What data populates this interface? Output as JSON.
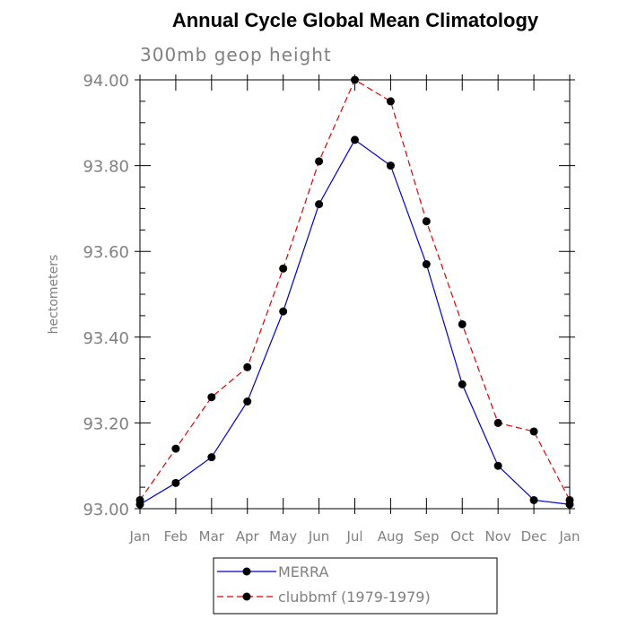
{
  "chart_data": {
    "type": "line",
    "title": "Annual Cycle Global Mean Climatology",
    "subtitle": "300mb geop height",
    "xlabel": "",
    "ylabel": "hectometers",
    "categories": [
      "Jan",
      "Feb",
      "Mar",
      "Apr",
      "May",
      "Jun",
      "Jul",
      "Aug",
      "Sep",
      "Oct",
      "Nov",
      "Dec",
      "Jan"
    ],
    "yticks": [
      "93.00",
      "93.20",
      "93.40",
      "93.60",
      "93.80",
      "94.00"
    ],
    "ylim": [
      93.0,
      94.0
    ],
    "grid": false,
    "legend_position": "bottom",
    "series": [
      {
        "name": "MERRA",
        "color": "#0000cc",
        "line_style": "solid",
        "marker": "filled-circle",
        "values": [
          93.01,
          93.06,
          93.12,
          93.25,
          93.46,
          93.71,
          93.86,
          93.8,
          93.57,
          93.29,
          93.1,
          93.02,
          93.01
        ]
      },
      {
        "name": "clubbmf (1979-1979)",
        "color": "#dd0000",
        "line_style": "dashed",
        "marker": "filled-circle",
        "values": [
          93.02,
          93.14,
          93.26,
          93.33,
          93.56,
          93.81,
          94.0,
          93.95,
          93.67,
          93.43,
          93.2,
          93.18,
          93.02
        ]
      }
    ]
  }
}
